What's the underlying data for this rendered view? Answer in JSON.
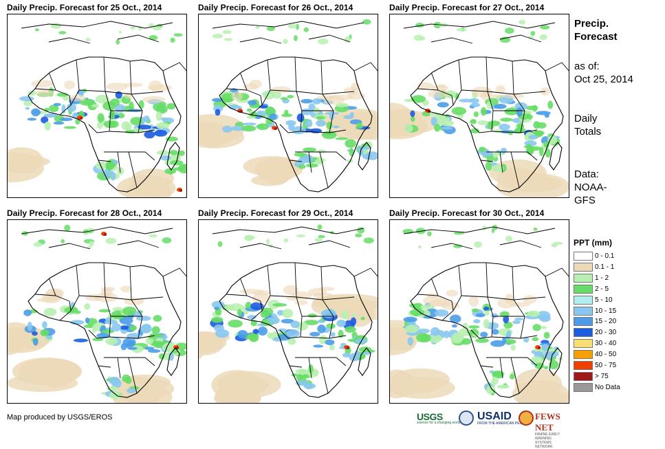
{
  "panels": [
    {
      "title": "Daily Precip. Forecast for 25 Oct., 2014"
    },
    {
      "title": "Daily Precip. Forecast for 26 Oct., 2014"
    },
    {
      "title": "Daily Precip. Forecast for 27 Oct., 2014"
    },
    {
      "title": "Daily Precip. Forecast for 28 Oct., 2014"
    },
    {
      "title": "Daily Precip. Forecast for 29 Oct., 2014"
    },
    {
      "title": "Daily Precip. Forecast for 30 Oct., 2014"
    }
  ],
  "side": {
    "title_line1": "Precip.",
    "title_line2": "Forecast",
    "asof_label": "as of:",
    "asof_date": "Oct 25, 2014",
    "totals_line1": "Daily",
    "totals_line2": "Totals",
    "data_line1": "Data:",
    "data_line2": "NOAA-",
    "data_line3": "GFS"
  },
  "legend": {
    "title": "PPT (mm)",
    "items": [
      {
        "label": "0 - 0.1",
        "color": "#ffffff"
      },
      {
        "label": "0.1 - 1",
        "color": "#ecd9b8"
      },
      {
        "label": "1 - 2",
        "color": "#b8f0b0"
      },
      {
        "label": "2 - 5",
        "color": "#66dd66"
      },
      {
        "label": "5 - 10",
        "color": "#b0eef0"
      },
      {
        "label": "10 - 15",
        "color": "#88c8f0"
      },
      {
        "label": "15 - 20",
        "color": "#4a9ce8"
      },
      {
        "label": "20 - 30",
        "color": "#1c5ce0"
      },
      {
        "label": "30 - 40",
        "color": "#f8e070"
      },
      {
        "label": "40 - 50",
        "color": "#f8a000"
      },
      {
        "label": "50 - 75",
        "color": "#f04000"
      },
      {
        "label": "> 75",
        "color": "#a01818"
      },
      {
        "label": "No Data",
        "color": "#999999"
      }
    ]
  },
  "credit": "Map produced by USGS/EROS",
  "logos": {
    "usgs": "USGS",
    "usgs_tagline": "science for a changing world",
    "usaid": "USAID",
    "usaid_tagline": "FROM THE AMERICAN PEOPLE",
    "fews": "FEWS NET",
    "fews_tagline": "FAMINE EARLY WARNING SYSTEMS NETWORK"
  }
}
